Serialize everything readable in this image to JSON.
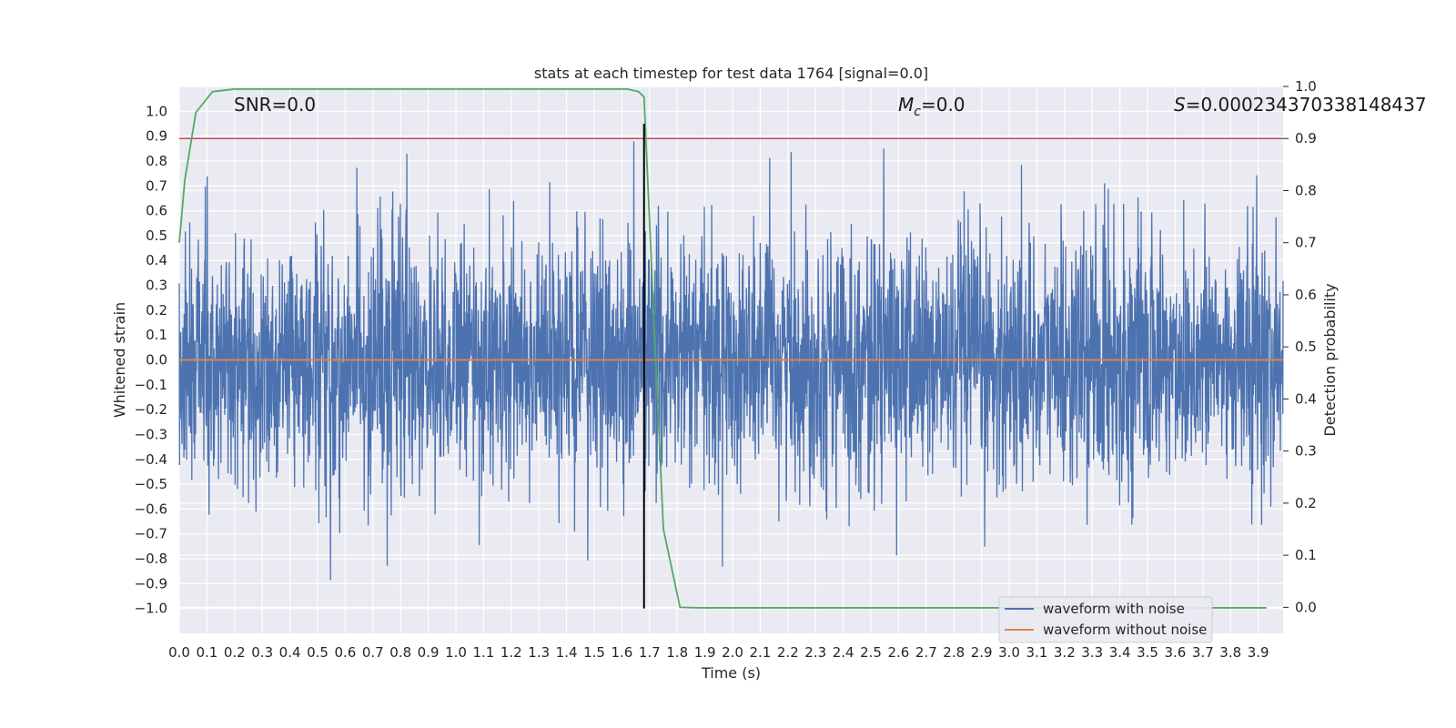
{
  "chart_data": {
    "type": "line",
    "title": "stats at each timestep for test data 1764 [signal=0.0]",
    "xlabel": "Time (s)",
    "ylabel": "Whitened strain",
    "y2label": "Detection probability",
    "xlim": [
      0.0,
      3.99
    ],
    "ylim": [
      -1.1,
      1.1
    ],
    "y2lim": [
      -0.05,
      1.0
    ],
    "x_ticks": [
      "0.0",
      "0.1",
      "0.2",
      "0.3",
      "0.4",
      "0.5",
      "0.6",
      "0.7",
      "0.8",
      "0.9",
      "1.0",
      "1.1",
      "1.2",
      "1.3",
      "1.4",
      "1.5",
      "1.6",
      "1.7",
      "1.8",
      "1.9",
      "2.0",
      "2.1",
      "2.2",
      "2.3",
      "2.4",
      "2.5",
      "2.6",
      "2.7",
      "2.8",
      "2.9",
      "3.0",
      "3.1",
      "3.2",
      "3.3",
      "3.4",
      "3.5",
      "3.6",
      "3.7",
      "3.8",
      "3.9"
    ],
    "y_ticks": [
      "1.0",
      "0.9",
      "0.8",
      "0.7",
      "0.6",
      "0.5",
      "0.4",
      "0.3",
      "0.2",
      "0.1",
      "0.0",
      "-0.1",
      "-0.2",
      "-0.3",
      "-0.4",
      "-0.5",
      "-0.6",
      "-0.7",
      "-0.8",
      "-0.9",
      "-1.0"
    ],
    "y2_ticks": [
      "1.0",
      "0.9",
      "0.8",
      "0.7",
      "0.6",
      "0.5",
      "0.4",
      "0.3",
      "0.2",
      "0.1",
      "0.0"
    ],
    "grid": true,
    "legend_position": "bottom-right",
    "series": [
      {
        "name": "waveform with noise",
        "color": "#4c72b0",
        "axis": "left",
        "description_free_noise": true,
        "x_range": [
          0.0,
          3.99
        ],
        "approx_envelope": [
          -1.0,
          0.95
        ]
      },
      {
        "name": "waveform without noise",
        "color": "#dd8452",
        "axis": "left",
        "x": [
          0.0,
          3.99
        ],
        "y": [
          0.0,
          0.0
        ]
      },
      {
        "color": "#55a868",
        "axis": "right",
        "x": [
          0.0,
          0.02,
          0.06,
          0.12,
          0.2,
          0.5,
          1.0,
          1.5,
          1.62,
          1.66,
          1.68,
          1.72,
          1.75,
          1.81,
          1.88,
          2.5,
          3.93
        ],
        "y": [
          0.7,
          0.82,
          0.95,
          0.99,
          0.995,
          0.995,
          0.995,
          0.995,
          0.995,
          0.99,
          0.98,
          0.5,
          0.15,
          0.0,
          -0.001,
          -0.001,
          -0.001
        ]
      }
    ],
    "threshold_line": {
      "axis": "right",
      "value": 0.9,
      "color": "#c44e52"
    },
    "marker_line": {
      "x": 1.68,
      "color": "#000000"
    },
    "annotations": {
      "snr": "SNR=0.0",
      "mc_symbol": "M",
      "mc_sub": "c",
      "mc_value": "=0.0",
      "s_symbol": "S",
      "s_value": "=0.00023437033814843",
      "s_value_tail": "7"
    }
  }
}
